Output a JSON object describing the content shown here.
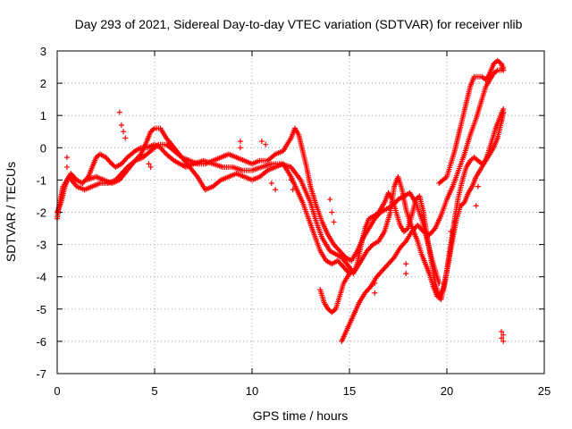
{
  "chart_data": {
    "type": "scatter",
    "title": "Day 293 of 2021, Sidereal Day-to-day VTEC variation (SDTVAR) for receiver nlib",
    "xlabel": "GPS time / hours",
    "ylabel": "SDTVAR / TECUs",
    "xlim": [
      0,
      25
    ],
    "ylim": [
      -7,
      3
    ],
    "x_ticks": [
      0,
      5,
      10,
      15,
      20,
      25
    ],
    "y_ticks": [
      -7,
      -6,
      -5,
      -4,
      -3,
      -2,
      -1,
      0,
      1,
      2,
      3
    ],
    "grid": true,
    "legend": "none",
    "marker": "+",
    "color": "#ff0000",
    "series": [
      {
        "points": [
          [
            0.0,
            -2.2
          ],
          [
            0.1,
            -1.8
          ],
          [
            0.2,
            -1.5
          ],
          [
            0.3,
            -1.2
          ],
          [
            0.5,
            -1.0
          ],
          [
            0.7,
            -0.8
          ],
          [
            1.0,
            -1.0
          ],
          [
            1.3,
            -1.1
          ],
          [
            1.6,
            -0.9
          ],
          [
            1.8,
            -0.6
          ],
          [
            2.0,
            -0.3
          ],
          [
            2.2,
            -0.2
          ],
          [
            2.5,
            -0.3
          ],
          [
            2.8,
            -0.5
          ],
          [
            3.0,
            -0.6
          ],
          [
            3.3,
            -0.5
          ],
          [
            3.6,
            -0.3
          ],
          [
            4.0,
            -0.1
          ],
          [
            4.3,
            0.0
          ],
          [
            4.6,
            0.0
          ],
          [
            5.0,
            0.1
          ],
          [
            5.3,
            0.0
          ],
          [
            5.6,
            -0.2
          ],
          [
            6.0,
            -0.4
          ],
          [
            6.3,
            -0.5
          ],
          [
            6.6,
            -0.6
          ],
          [
            7.0,
            -0.5
          ],
          [
            7.5,
            -0.4
          ],
          [
            8.0,
            -0.5
          ],
          [
            8.5,
            -0.6
          ],
          [
            9.0,
            -0.6
          ],
          [
            9.5,
            -0.7
          ],
          [
            10.0,
            -0.7
          ],
          [
            10.5,
            -0.6
          ],
          [
            11.0,
            -0.5
          ],
          [
            11.5,
            -0.5
          ],
          [
            12.0,
            -0.6
          ],
          [
            12.5,
            -1.0
          ],
          [
            13.0,
            -1.7
          ],
          [
            13.3,
            -2.3
          ],
          [
            13.6,
            -2.8
          ],
          [
            14.0,
            -3.2
          ],
          [
            14.3,
            -3.3
          ],
          [
            14.6,
            -3.4
          ],
          [
            15.0,
            -3.7
          ],
          [
            15.2,
            -3.9
          ],
          [
            15.4,
            -3.6
          ],
          [
            15.6,
            -3.0
          ],
          [
            15.8,
            -2.5
          ],
          [
            16.0,
            -2.2
          ],
          [
            16.3,
            -2.1
          ],
          [
            16.5,
            -2.0
          ],
          [
            16.8,
            -1.7
          ],
          [
            17.0,
            -1.4
          ],
          [
            17.2,
            -1.6
          ],
          [
            17.4,
            -2.0
          ],
          [
            17.6,
            -2.4
          ],
          [
            17.8,
            -2.6
          ],
          [
            18.0,
            -2.5
          ],
          [
            18.2,
            -2.1
          ],
          [
            18.4,
            -1.6
          ],
          [
            18.6,
            -1.5
          ],
          [
            18.8,
            -2.0
          ],
          [
            19.0,
            -2.8
          ],
          [
            19.2,
            -3.5
          ],
          [
            19.4,
            -4.2
          ],
          [
            19.6,
            -4.6
          ],
          [
            19.8,
            -4.4
          ],
          [
            20.0,
            -3.8
          ],
          [
            20.2,
            -3.0
          ],
          [
            20.4,
            -2.2
          ],
          [
            20.6,
            -1.5
          ],
          [
            20.8,
            -1.0
          ],
          [
            21.0,
            -0.6
          ],
          [
            21.2,
            -0.4
          ],
          [
            21.4,
            -0.3
          ],
          [
            21.6,
            -0.4
          ],
          [
            21.8,
            -0.5
          ],
          [
            22.0,
            -0.4
          ],
          [
            22.2,
            -0.2
          ],
          [
            22.4,
            0.0
          ],
          [
            22.6,
            0.3
          ],
          [
            22.8,
            0.8
          ],
          [
            22.9,
            1.1
          ]
        ]
      },
      {
        "points": [
          [
            0.0,
            -2.0
          ],
          [
            0.2,
            -1.7
          ],
          [
            0.4,
            -1.2
          ],
          [
            0.6,
            -0.9
          ],
          [
            1.0,
            -1.2
          ],
          [
            1.4,
            -1.3
          ],
          [
            1.8,
            -1.2
          ],
          [
            2.2,
            -1.1
          ],
          [
            2.6,
            -1.1
          ],
          [
            3.0,
            -1.0
          ],
          [
            3.3,
            -0.8
          ],
          [
            3.6,
            -0.6
          ],
          [
            4.0,
            -0.4
          ],
          [
            4.3,
            -0.2
          ],
          [
            4.6,
            0.2
          ],
          [
            4.8,
            0.5
          ],
          [
            5.0,
            0.6
          ],
          [
            5.3,
            0.6
          ],
          [
            5.6,
            0.3
          ],
          [
            6.0,
            0.0
          ],
          [
            6.4,
            -0.3
          ],
          [
            6.8,
            -0.6
          ],
          [
            7.2,
            -0.9
          ],
          [
            7.6,
            -1.3
          ],
          [
            8.0,
            -1.2
          ],
          [
            8.4,
            -1.0
          ],
          [
            8.8,
            -0.9
          ],
          [
            9.2,
            -0.8
          ],
          [
            9.6,
            -0.9
          ],
          [
            10.0,
            -1.0
          ],
          [
            10.4,
            -0.9
          ],
          [
            10.8,
            -0.7
          ],
          [
            11.2,
            -0.6
          ],
          [
            11.6,
            -0.5
          ],
          [
            12.0,
            -0.9
          ],
          [
            12.3,
            -1.3
          ],
          [
            12.6,
            -1.7
          ],
          [
            12.9,
            -2.2
          ],
          [
            13.2,
            -2.7
          ],
          [
            13.5,
            -3.2
          ],
          [
            13.8,
            -3.5
          ],
          [
            14.1,
            -3.6
          ],
          [
            14.4,
            -3.5
          ],
          [
            14.7,
            -3.7
          ],
          [
            15.0,
            -3.9
          ],
          [
            15.3,
            -3.8
          ],
          [
            15.6,
            -3.5
          ],
          [
            15.9,
            -3.2
          ],
          [
            16.2,
            -3.0
          ],
          [
            16.5,
            -2.9
          ],
          [
            16.8,
            -2.6
          ],
          [
            17.1,
            -2.0
          ],
          [
            17.3,
            -1.2
          ],
          [
            17.5,
            -0.9
          ],
          [
            17.7,
            -1.3
          ],
          [
            17.9,
            -1.9
          ],
          [
            18.1,
            -2.3
          ],
          [
            18.3,
            -2.6
          ],
          [
            18.5,
            -2.9
          ],
          [
            18.7,
            -3.3
          ],
          [
            18.9,
            -3.6
          ],
          [
            19.1,
            -3.9
          ],
          [
            19.3,
            -4.3
          ],
          [
            19.5,
            -4.6
          ],
          [
            19.7,
            -4.7
          ],
          [
            19.9,
            -4.2
          ],
          [
            20.1,
            -3.5
          ],
          [
            20.3,
            -2.8
          ],
          [
            20.5,
            -2.2
          ],
          [
            20.7,
            -1.8
          ],
          [
            20.9,
            -1.7
          ],
          [
            21.1,
            -1.4
          ],
          [
            21.3,
            -1.2
          ],
          [
            21.5,
            -0.9
          ],
          [
            21.7,
            -0.7
          ],
          [
            21.9,
            -0.5
          ],
          [
            22.1,
            -0.2
          ],
          [
            22.3,
            0.2
          ],
          [
            22.5,
            0.6
          ],
          [
            22.7,
            0.9
          ],
          [
            22.9,
            1.2
          ]
        ]
      },
      {
        "points": [
          [
            1.5,
            -1.0
          ],
          [
            2.0,
            -0.9
          ],
          [
            2.4,
            -1.0
          ],
          [
            2.8,
            -1.1
          ],
          [
            3.2,
            -1.0
          ],
          [
            3.6,
            -0.7
          ],
          [
            4.0,
            -0.4
          ],
          [
            4.4,
            -0.3
          ],
          [
            4.8,
            -0.1
          ],
          [
            5.2,
            0.1
          ],
          [
            5.6,
            0.1
          ],
          [
            6.0,
            -0.1
          ],
          [
            6.4,
            -0.3
          ],
          [
            6.8,
            -0.4
          ],
          [
            7.2,
            -0.5
          ],
          [
            7.6,
            -0.5
          ],
          [
            8.0,
            -0.4
          ],
          [
            8.4,
            -0.3
          ],
          [
            8.8,
            -0.2
          ],
          [
            9.2,
            -0.3
          ],
          [
            9.6,
            -0.4
          ],
          [
            10.0,
            -0.5
          ],
          [
            10.4,
            -0.4
          ],
          [
            10.8,
            -0.4
          ],
          [
            11.2,
            -0.2
          ],
          [
            11.6,
            -0.1
          ],
          [
            12.0,
            0.3
          ],
          [
            12.2,
            0.6
          ],
          [
            12.4,
            0.4
          ],
          [
            12.6,
            -0.1
          ],
          [
            12.8,
            -0.6
          ],
          [
            13.0,
            -1.2
          ],
          [
            13.3,
            -1.8
          ],
          [
            13.6,
            -2.3
          ],
          [
            13.9,
            -2.7
          ],
          [
            14.2,
            -3.0
          ],
          [
            14.5,
            -3.2
          ],
          [
            14.8,
            -3.4
          ],
          [
            15.1,
            -3.5
          ],
          [
            15.4,
            -3.2
          ],
          [
            15.7,
            -2.8
          ],
          [
            16.0,
            -2.5
          ],
          [
            16.3,
            -2.2
          ],
          [
            16.6,
            -2.0
          ],
          [
            16.9,
            -1.9
          ],
          [
            17.2,
            -1.8
          ],
          [
            17.5,
            -1.6
          ],
          [
            17.8,
            -1.5
          ],
          [
            18.1,
            -1.4
          ],
          [
            18.4,
            -1.7
          ],
          [
            18.7,
            -2.2
          ],
          [
            19.0,
            -2.9
          ],
          [
            19.3,
            -3.6
          ],
          [
            19.6,
            -4.2
          ]
        ]
      },
      {
        "points": [
          [
            14.6,
            -6.0
          ],
          [
            14.9,
            -5.6
          ],
          [
            15.2,
            -5.2
          ],
          [
            15.5,
            -4.8
          ],
          [
            15.8,
            -4.5
          ],
          [
            16.1,
            -4.3
          ],
          [
            16.4,
            -4.0
          ],
          [
            16.7,
            -3.8
          ],
          [
            17.0,
            -3.6
          ],
          [
            17.3,
            -3.4
          ],
          [
            17.6,
            -3.1
          ],
          [
            17.9,
            -2.9
          ],
          [
            18.2,
            -2.6
          ],
          [
            18.5,
            -2.4
          ],
          [
            18.8,
            -2.6
          ],
          [
            19.1,
            -2.7
          ],
          [
            19.4,
            -2.5
          ],
          [
            19.7,
            -2.1
          ],
          [
            20.0,
            -1.6
          ],
          [
            20.3,
            -1.2
          ],
          [
            20.6,
            -0.7
          ],
          [
            20.9,
            -0.2
          ],
          [
            21.2,
            0.4
          ],
          [
            21.5,
            0.9
          ],
          [
            21.8,
            1.5
          ],
          [
            22.0,
            1.9
          ],
          [
            22.2,
            2.1
          ],
          [
            22.4,
            2.3
          ],
          [
            22.6,
            2.4
          ],
          [
            22.8,
            2.4
          ],
          [
            22.9,
            2.5
          ]
        ]
      },
      {
        "points": [
          [
            19.6,
            -1.1
          ],
          [
            19.8,
            -1.0
          ],
          [
            20.0,
            -0.9
          ],
          [
            20.2,
            -0.5
          ],
          [
            20.4,
            -0.1
          ],
          [
            20.6,
            0.4
          ],
          [
            20.8,
            0.9
          ],
          [
            21.0,
            1.4
          ],
          [
            21.2,
            1.9
          ],
          [
            21.4,
            2.2
          ],
          [
            21.6,
            2.2
          ],
          [
            21.8,
            2.2
          ],
          [
            22.0,
            2.1
          ],
          [
            22.2,
            2.3
          ],
          [
            22.4,
            2.6
          ],
          [
            22.6,
            2.7
          ],
          [
            22.8,
            2.6
          ],
          [
            22.9,
            2.4
          ]
        ]
      },
      {
        "points": [
          [
            13.5,
            -4.4
          ],
          [
            13.7,
            -4.8
          ],
          [
            13.9,
            -5.0
          ],
          [
            14.1,
            -5.1
          ],
          [
            14.3,
            -5.0
          ],
          [
            14.5,
            -4.6
          ],
          [
            14.7,
            -4.2
          ],
          [
            14.9,
            -4.0
          ],
          [
            15.1,
            -3.8
          ]
        ]
      },
      {
        "points": [
          [
            0.5,
            -0.3
          ],
          [
            0.5,
            -0.6
          ],
          [
            3.2,
            1.1
          ],
          [
            3.3,
            0.7
          ],
          [
            3.4,
            0.5
          ],
          [
            3.5,
            0.3
          ],
          [
            4.7,
            -0.5
          ],
          [
            4.8,
            -0.6
          ],
          [
            9.4,
            0.2
          ],
          [
            9.4,
            0.0
          ],
          [
            10.5,
            0.2
          ],
          [
            10.7,
            0.1
          ],
          [
            11.0,
            -1.1
          ],
          [
            11.2,
            -1.3
          ],
          [
            12.0,
            -1.0
          ],
          [
            12.1,
            -1.3
          ],
          [
            14.0,
            -1.6
          ],
          [
            14.1,
            -2.0
          ],
          [
            14.2,
            -2.3
          ],
          [
            16.3,
            -4.2
          ],
          [
            16.3,
            -4.5
          ],
          [
            17.2,
            -1.7
          ],
          [
            17.9,
            -3.6
          ],
          [
            17.9,
            -3.9
          ],
          [
            20.2,
            -2.6
          ],
          [
            20.4,
            -2.3
          ],
          [
            21.5,
            -1.8
          ],
          [
            21.6,
            -1.2
          ],
          [
            22.8,
            -5.7
          ],
          [
            22.8,
            -5.9
          ],
          [
            22.9,
            -6.0
          ],
          [
            22.9,
            -5.8
          ]
        ]
      }
    ]
  }
}
